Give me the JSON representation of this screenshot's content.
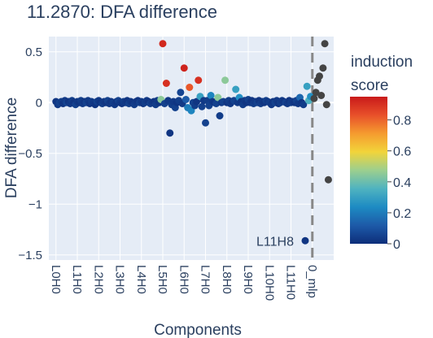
{
  "chart_data": {
    "type": "scatter",
    "title_lines": [
      "11.2870: DFA difference"
    ],
    "xlabel": "Components",
    "ylabel": "DFA difference",
    "ylim": [
      -1.55,
      0.65
    ],
    "yticks": [
      0.5,
      0,
      -0.5,
      -1,
      -1.5
    ],
    "ytick_labels": [
      "0.5",
      "0",
      "−0.5",
      "−1",
      "−1.5"
    ],
    "xticks": [
      {
        "label": "L0H0",
        "x": 0
      },
      {
        "label": "L1H0",
        "x": 12
      },
      {
        "label": "L2H0",
        "x": 24
      },
      {
        "label": "L3H0",
        "x": 36
      },
      {
        "label": "L4H0",
        "x": 48
      },
      {
        "label": "L5H0",
        "x": 60
      },
      {
        "label": "L6H0",
        "x": 72
      },
      {
        "label": "L7H0",
        "x": 84
      },
      {
        "label": "L8H0",
        "x": 96
      },
      {
        "label": "L9H0",
        "x": 108
      },
      {
        "label": "L10H0",
        "x": 120
      },
      {
        "label": "L11H0",
        "x": 132
      },
      {
        "label": "0_mlp",
        "x": 144
      }
    ],
    "xlim": [
      -4,
      156
    ],
    "divider_x": 144,
    "colorbar": {
      "title_lines": [
        "induction",
        "score"
      ],
      "ticks": [
        0.8,
        0.6,
        0.4,
        0.2,
        0
      ],
      "tick_labels": [
        "0.8",
        "0.6",
        "0.4",
        "0.2",
        "0"
      ],
      "range": [
        0,
        0.95
      ],
      "colors": [
        "#0d2e7a",
        "#1d5aa8",
        "#1d8bc3",
        "#4fb3c0",
        "#9ccf8e",
        "#f2d43a",
        "#f59b2f",
        "#e8502a",
        "#c91a1a"
      ]
    },
    "annotations": [
      {
        "text": "L11H8",
        "x": 140,
        "y": -1.36
      }
    ],
    "heads": [
      {
        "x": 0,
        "y": 0.01,
        "score": 0.02
      },
      {
        "x": 1,
        "y": -0.02,
        "score": 0.03
      },
      {
        "x": 2,
        "y": 0.0,
        "score": 0.05
      },
      {
        "x": 3,
        "y": 0.01,
        "score": 0.04
      },
      {
        "x": 4,
        "y": -0.01,
        "score": 0.02
      },
      {
        "x": 5,
        "y": 0.02,
        "score": 0.03
      },
      {
        "x": 6,
        "y": 0.0,
        "score": 0.06
      },
      {
        "x": 7,
        "y": 0.01,
        "score": 0.02
      },
      {
        "x": 8,
        "y": -0.01,
        "score": 0.03
      },
      {
        "x": 9,
        "y": 0.02,
        "score": 0.04
      },
      {
        "x": 10,
        "y": 0.0,
        "score": 0.02
      },
      {
        "x": 11,
        "y": -0.02,
        "score": 0.05
      },
      {
        "x": 12,
        "y": 0.01,
        "score": 0.03
      },
      {
        "x": 13,
        "y": 0.0,
        "score": 0.02
      },
      {
        "x": 14,
        "y": 0.02,
        "score": 0.04
      },
      {
        "x": 15,
        "y": -0.01,
        "score": 0.03
      },
      {
        "x": 16,
        "y": 0.01,
        "score": 0.02
      },
      {
        "x": 17,
        "y": 0.0,
        "score": 0.05
      },
      {
        "x": 18,
        "y": 0.02,
        "score": 0.03
      },
      {
        "x": 19,
        "y": -0.01,
        "score": 0.02
      },
      {
        "x": 20,
        "y": 0.01,
        "score": 0.04
      },
      {
        "x": 21,
        "y": 0.0,
        "score": 0.03
      },
      {
        "x": 22,
        "y": -0.02,
        "score": 0.02
      },
      {
        "x": 23,
        "y": 0.01,
        "score": 0.05
      },
      {
        "x": 24,
        "y": 0.02,
        "score": 0.03
      },
      {
        "x": 25,
        "y": 0.0,
        "score": 0.02
      },
      {
        "x": 26,
        "y": -0.01,
        "score": 0.04
      },
      {
        "x": 27,
        "y": 0.01,
        "score": 0.03
      },
      {
        "x": 28,
        "y": 0.0,
        "score": 0.02
      },
      {
        "x": 29,
        "y": 0.02,
        "score": 0.05
      },
      {
        "x": 30,
        "y": -0.01,
        "score": 0.03
      },
      {
        "x": 31,
        "y": 0.01,
        "score": 0.02
      },
      {
        "x": 32,
        "y": 0.0,
        "score": 0.04
      },
      {
        "x": 33,
        "y": -0.02,
        "score": 0.03
      },
      {
        "x": 34,
        "y": 0.01,
        "score": 0.02
      },
      {
        "x": 35,
        "y": 0.02,
        "score": 0.05
      },
      {
        "x": 36,
        "y": 0.0,
        "score": 0.03
      },
      {
        "x": 37,
        "y": -0.01,
        "score": 0.02
      },
      {
        "x": 38,
        "y": 0.01,
        "score": 0.04
      },
      {
        "x": 39,
        "y": 0.0,
        "score": 0.03
      },
      {
        "x": 40,
        "y": 0.02,
        "score": 0.02
      },
      {
        "x": 41,
        "y": -0.01,
        "score": 0.05
      },
      {
        "x": 42,
        "y": 0.01,
        "score": 0.03
      },
      {
        "x": 43,
        "y": 0.0,
        "score": 0.02
      },
      {
        "x": 44,
        "y": -0.02,
        "score": 0.04
      },
      {
        "x": 45,
        "y": 0.01,
        "score": 0.03
      },
      {
        "x": 46,
        "y": 0.02,
        "score": 0.02
      },
      {
        "x": 47,
        "y": 0.0,
        "score": 0.05
      },
      {
        "x": 48,
        "y": 0.01,
        "score": 0.03
      },
      {
        "x": 49,
        "y": -0.01,
        "score": 0.02
      },
      {
        "x": 50,
        "y": 0.0,
        "score": 0.04
      },
      {
        "x": 51,
        "y": 0.02,
        "score": 0.03
      },
      {
        "x": 52,
        "y": 0.01,
        "score": 0.02
      },
      {
        "x": 53,
        "y": -0.01,
        "score": 0.05
      },
      {
        "x": 54,
        "y": 0.0,
        "score": 0.03
      },
      {
        "x": 55,
        "y": 0.01,
        "score": 0.02
      },
      {
        "x": 56,
        "y": -0.02,
        "score": 0.04
      },
      {
        "x": 57,
        "y": 0.02,
        "score": 0.03
      },
      {
        "x": 58,
        "y": 0.0,
        "score": 0.02
      },
      {
        "x": 59,
        "y": 0.03,
        "score": 0.45
      },
      {
        "x": 60,
        "y": 0.58,
        "score": 0.92
      },
      {
        "x": 61,
        "y": -0.01,
        "score": 0.05
      },
      {
        "x": 62,
        "y": 0.19,
        "score": 0.9
      },
      {
        "x": 63,
        "y": 0.02,
        "score": 0.03
      },
      {
        "x": 64,
        "y": -0.3,
        "score": 0.02
      },
      {
        "x": 65,
        "y": -0.02,
        "score": 0.04
      },
      {
        "x": 66,
        "y": 0.01,
        "score": 0.03
      },
      {
        "x": 67,
        "y": -0.05,
        "score": 0.05
      },
      {
        "x": 68,
        "y": 0.0,
        "score": 0.02
      },
      {
        "x": 69,
        "y": 0.02,
        "score": 0.04
      },
      {
        "x": 70,
        "y": 0.1,
        "score": 0.06
      },
      {
        "x": 71,
        "y": -0.01,
        "score": 0.03
      },
      {
        "x": 72,
        "y": 0.34,
        "score": 0.93
      },
      {
        "x": 73,
        "y": 0.03,
        "score": 0.12
      },
      {
        "x": 74,
        "y": -0.05,
        "score": 0.2
      },
      {
        "x": 75,
        "y": 0.15,
        "score": 0.82
      },
      {
        "x": 76,
        "y": -0.08,
        "score": 0.22
      },
      {
        "x": 77,
        "y": 0.0,
        "score": 0.05
      },
      {
        "x": 78,
        "y": -0.03,
        "score": 0.04
      },
      {
        "x": 79,
        "y": 0.01,
        "score": 0.02
      },
      {
        "x": 80,
        "y": 0.22,
        "score": 0.9
      },
      {
        "x": 81,
        "y": 0.06,
        "score": 0.3
      },
      {
        "x": 82,
        "y": -0.04,
        "score": 0.05
      },
      {
        "x": 83,
        "y": 0.02,
        "score": 0.03
      },
      {
        "x": 84,
        "y": -0.2,
        "score": 0.05
      },
      {
        "x": 85,
        "y": 0.02,
        "score": 0.04
      },
      {
        "x": 86,
        "y": -0.03,
        "score": 0.05
      },
      {
        "x": 87,
        "y": 0.07,
        "score": 0.22
      },
      {
        "x": 88,
        "y": 0.01,
        "score": 0.03
      },
      {
        "x": 89,
        "y": 0.0,
        "score": 0.02
      },
      {
        "x": 90,
        "y": -0.01,
        "score": 0.05
      },
      {
        "x": 91,
        "y": 0.05,
        "score": 0.45
      },
      {
        "x": 92,
        "y": -0.13,
        "score": 0.04
      },
      {
        "x": 93,
        "y": 0.0,
        "score": 0.03
      },
      {
        "x": 94,
        "y": 0.01,
        "score": 0.05
      },
      {
        "x": 95,
        "y": 0.22,
        "score": 0.45
      },
      {
        "x": 96,
        "y": 0.0,
        "score": 0.02
      },
      {
        "x": 97,
        "y": 0.02,
        "score": 0.04
      },
      {
        "x": 98,
        "y": -0.01,
        "score": 0.03
      },
      {
        "x": 99,
        "y": 0.01,
        "score": 0.02
      },
      {
        "x": 100,
        "y": 0.02,
        "score": 0.05
      },
      {
        "x": 101,
        "y": 0.13,
        "score": 0.3
      },
      {
        "x": 102,
        "y": 0.0,
        "score": 0.03
      },
      {
        "x": 103,
        "y": 0.05,
        "score": 0.25
      },
      {
        "x": 104,
        "y": 0.01,
        "score": 0.02
      },
      {
        "x": 105,
        "y": -0.02,
        "score": 0.04
      },
      {
        "x": 106,
        "y": 0.02,
        "score": 0.03
      },
      {
        "x": 107,
        "y": 0.0,
        "score": 0.02
      },
      {
        "x": 108,
        "y": 0.03,
        "score": 0.05
      },
      {
        "x": 109,
        "y": 0.0,
        "score": 0.03
      },
      {
        "x": 110,
        "y": 0.02,
        "score": 0.02
      },
      {
        "x": 111,
        "y": -0.01,
        "score": 0.04
      },
      {
        "x": 112,
        "y": 0.01,
        "score": 0.03
      },
      {
        "x": 113,
        "y": 0.0,
        "score": 0.05
      },
      {
        "x": 114,
        "y": 0.02,
        "score": 0.02
      },
      {
        "x": 115,
        "y": -0.01,
        "score": 0.04
      },
      {
        "x": 116,
        "y": 0.01,
        "score": 0.03
      },
      {
        "x": 117,
        "y": 0.0,
        "score": 0.02
      },
      {
        "x": 118,
        "y": 0.02,
        "score": 0.05
      },
      {
        "x": 119,
        "y": 0.01,
        "score": 0.03
      },
      {
        "x": 120,
        "y": 0.0,
        "score": 0.04
      },
      {
        "x": 121,
        "y": -0.02,
        "score": 0.03
      },
      {
        "x": 122,
        "y": 0.01,
        "score": 0.02
      },
      {
        "x": 123,
        "y": 0.0,
        "score": 0.05
      },
      {
        "x": 124,
        "y": 0.02,
        "score": 0.03
      },
      {
        "x": 125,
        "y": -0.01,
        "score": 0.02
      },
      {
        "x": 126,
        "y": 0.0,
        "score": 0.04
      },
      {
        "x": 127,
        "y": 0.02,
        "score": 0.03
      },
      {
        "x": 128,
        "y": 0.01,
        "score": 0.02
      },
      {
        "x": 129,
        "y": 0.0,
        "score": 0.05
      },
      {
        "x": 130,
        "y": -0.01,
        "score": 0.03
      },
      {
        "x": 131,
        "y": 0.02,
        "score": 0.02
      },
      {
        "x": 132,
        "y": 0.0,
        "score": 0.04
      },
      {
        "x": 133,
        "y": 0.01,
        "score": 0.03
      },
      {
        "x": 134,
        "y": 0.0,
        "score": 0.02
      },
      {
        "x": 135,
        "y": 0.02,
        "score": 0.05
      },
      {
        "x": 136,
        "y": -0.01,
        "score": 0.03
      },
      {
        "x": 137,
        "y": 0.05,
        "score": 0.15
      },
      {
        "x": 138,
        "y": 0.0,
        "score": 0.02
      },
      {
        "x": 139,
        "y": -0.02,
        "score": 0.04
      },
      {
        "x": 140,
        "y": -1.36,
        "score": 0.02
      },
      {
        "x": 141,
        "y": 0.16,
        "score": 0.3
      },
      {
        "x": 142,
        "y": 0.02,
        "score": 0.35
      },
      {
        "x": 143,
        "y": 0.06,
        "score": 0.25
      }
    ],
    "mlp_points": [
      {
        "x": 145,
        "y": 0.04
      },
      {
        "x": 146,
        "y": 0.1
      },
      {
        "x": 147,
        "y": 0.22
      },
      {
        "x": 148,
        "y": 0.26
      },
      {
        "x": 149,
        "y": 0.07
      },
      {
        "x": 150,
        "y": 0.34
      },
      {
        "x": 151,
        "y": 0.58
      },
      {
        "x": 152,
        "y": -0.02
      },
      {
        "x": 153,
        "y": -0.76
      }
    ],
    "mlp_color": "#444444"
  }
}
